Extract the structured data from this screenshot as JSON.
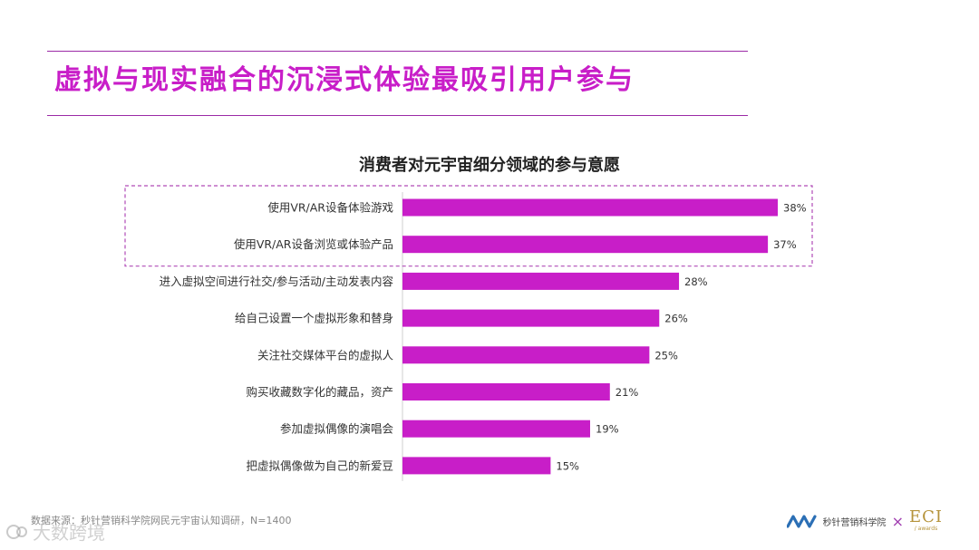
{
  "header": {
    "title": "虚拟与现实融合的沉浸式体验最吸引用户参与"
  },
  "chart_data": {
    "type": "bar",
    "orientation": "horizontal",
    "title": "消费者对元宇宙细分领域的参与意愿",
    "categories": [
      "使用VR/AR设备体验游戏",
      "使用VR/AR设备浏览或体验产品",
      "进入虚拟空间进行社交/参与活动/主动发表内容",
      "给自己设置一个虚拟形象和替身",
      "关注社交媒体平台的虚拟人",
      "购买收藏数字化的藏品，资产",
      "参加虚拟偶像的演唱会",
      "把虚拟偶像做为自己的新爱豆"
    ],
    "values": [
      38,
      37,
      28,
      26,
      25,
      21,
      19,
      15
    ],
    "value_labels": [
      "38%",
      "37%",
      "28%",
      "26%",
      "25%",
      "21%",
      "19%",
      "15%"
    ],
    "unit": "%",
    "xlim": [
      0,
      38
    ],
    "highlighted_categories": [
      0,
      1
    ],
    "bar_color": "#c81ec8",
    "highlight_box_color": "#b04bb8",
    "grid": false,
    "legend": "none"
  },
  "footer": {
    "source": "数据来源：秒针营销科学院网民元宇宙认知调研，N=1400",
    "watermark": "大数跨境",
    "brand_name": "秒针营销科学院",
    "brand_separator": "×",
    "awards_logo": "ECI",
    "awards_sub": "/ awards"
  },
  "colors": {
    "accent": "#c81ec8",
    "rule": "#9b2aa6"
  }
}
